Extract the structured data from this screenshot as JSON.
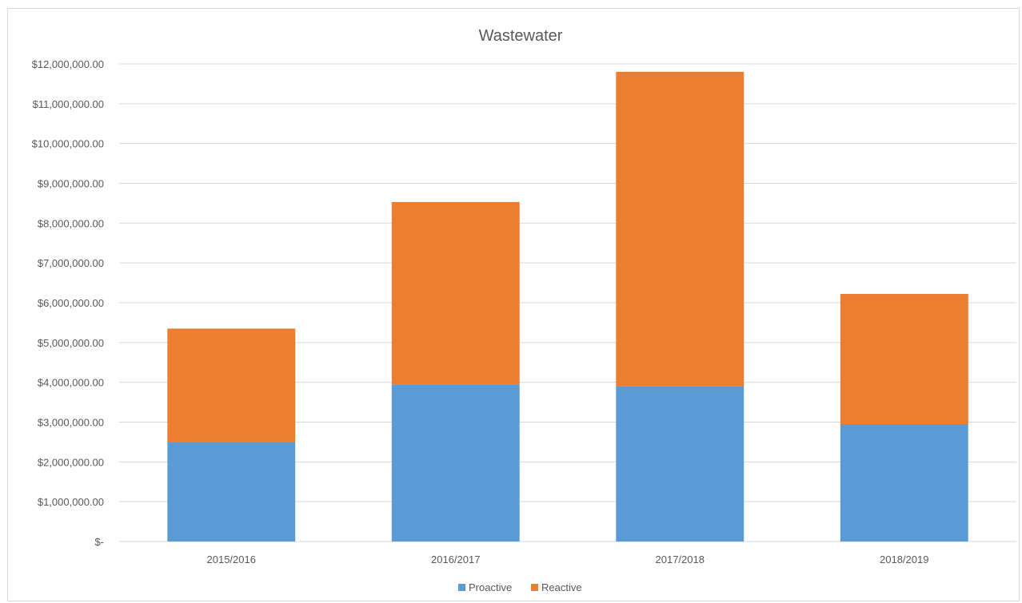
{
  "chart_data": {
    "type": "bar",
    "stacked": true,
    "title": "Wastewater",
    "xlabel": "",
    "ylabel": "",
    "categories": [
      "2015/2016",
      "2016/2017",
      "2017/2018",
      "2018/2019"
    ],
    "series": [
      {
        "name": "Proactive",
        "color": "#5b9bd5",
        "values": [
          2500000,
          3950000,
          3900000,
          2950000
        ]
      },
      {
        "name": "Reactive",
        "color": "#ed7d31",
        "values": [
          2850000,
          4580000,
          7900000,
          3270000
        ]
      }
    ],
    "ylim": [
      0,
      12000000
    ],
    "yticks": [
      0,
      1000000,
      2000000,
      3000000,
      4000000,
      5000000,
      6000000,
      7000000,
      8000000,
      9000000,
      10000000,
      11000000,
      12000000
    ],
    "ytick_labels": [
      "$-",
      "$1,000,000.00",
      "$2,000,000.00",
      "$3,000,000.00",
      "$4,000,000.00",
      "$5,000,000.00",
      "$6,000,000.00",
      "$7,000,000.00",
      "$8,000,000.00",
      "$9,000,000.00",
      "$10,000,000.00",
      "$11,000,000.00",
      "$12,000,000.00"
    ],
    "grid": true,
    "legend_position": "bottom"
  }
}
